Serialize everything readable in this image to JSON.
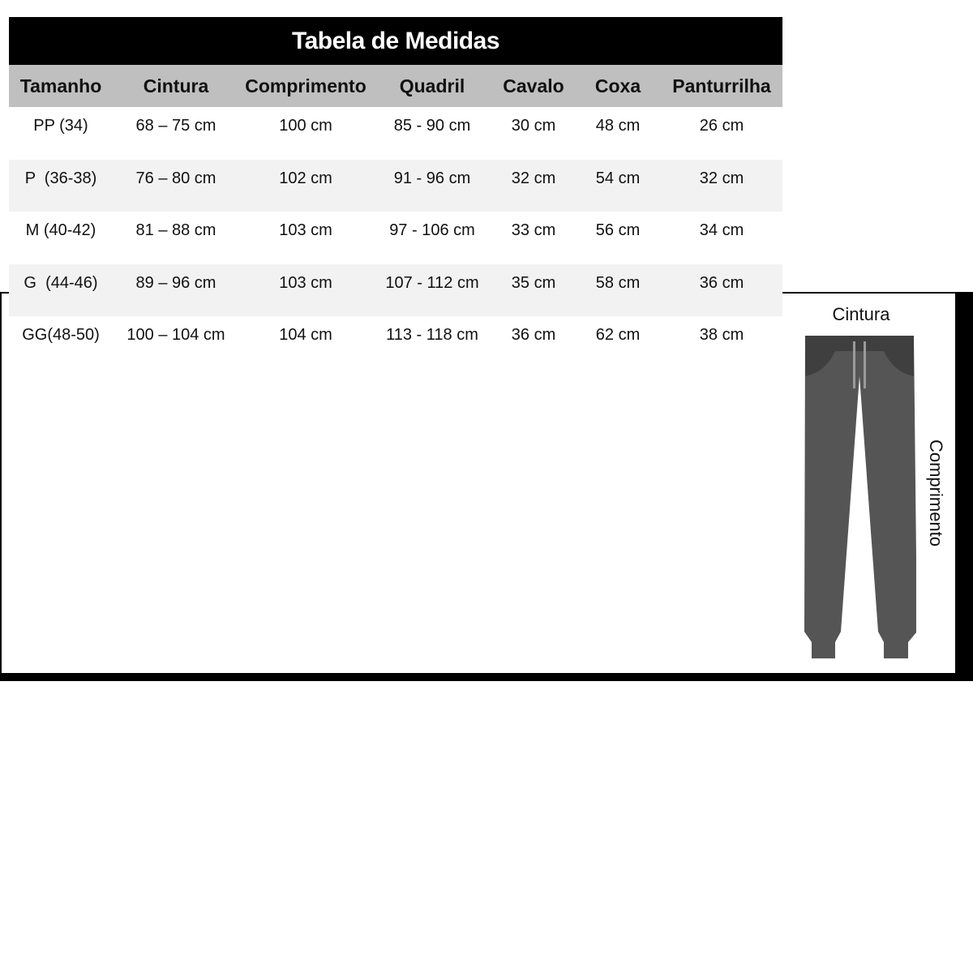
{
  "table": {
    "title": "Tabela de Medidas",
    "columns": [
      "Tamanho",
      "Cintura",
      "Comprimento",
      "Quadril",
      "Cavalo",
      "Coxa",
      "Panturrilha"
    ],
    "rows": [
      [
        "PP (34)",
        "68 – 75 cm",
        "100 cm",
        "85 - 90 cm",
        "30 cm",
        "48 cm",
        "26 cm"
      ],
      [
        "P  (36-38)",
        "76 – 80 cm",
        "102 cm",
        "91 - 96 cm",
        "32 cm",
        "54 cm",
        "32 cm"
      ],
      [
        "M (40-42)",
        "81 – 88 cm",
        "103 cm",
        "97 - 106 cm",
        "33 cm",
        "56 cm",
        "34 cm"
      ],
      [
        "G  (44-46)",
        "89 – 96 cm",
        "103 cm",
        "107 - 112 cm",
        "35 cm",
        "58 cm",
        "36 cm"
      ],
      [
        "GG(48-50)",
        "100 – 104 cm",
        "104 cm",
        "113 - 118 cm",
        "36 cm",
        "62 cm",
        "38 cm"
      ]
    ]
  },
  "diagram": {
    "top_label": "Cintura",
    "side_label": "Comprimento",
    "icon": "pants-icon",
    "colors": {
      "body": "#555555",
      "waistband": "#3f3f3f",
      "drawstring": "#9a9a9a"
    }
  }
}
